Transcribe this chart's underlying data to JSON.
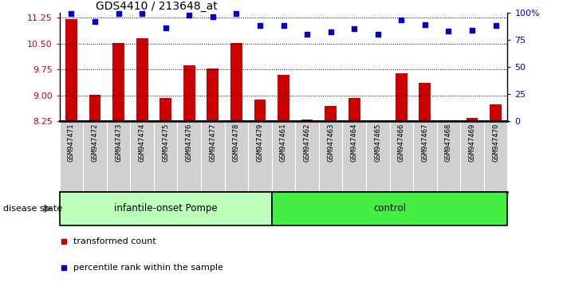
{
  "title": "GDS4410 / 213648_at",
  "samples": [
    "GSM947471",
    "GSM947472",
    "GSM947473",
    "GSM947474",
    "GSM947475",
    "GSM947476",
    "GSM947477",
    "GSM947478",
    "GSM947479",
    "GSM947461",
    "GSM947462",
    "GSM947463",
    "GSM947464",
    "GSM947465",
    "GSM947466",
    "GSM947467",
    "GSM947468",
    "GSM947469",
    "GSM947470"
  ],
  "bar_values": [
    11.22,
    9.01,
    10.53,
    10.65,
    8.93,
    9.88,
    9.78,
    10.53,
    8.87,
    9.6,
    8.3,
    8.7,
    8.93,
    8.28,
    9.65,
    9.37,
    8.27,
    8.35,
    8.75
  ],
  "dot_values": [
    99,
    92,
    99,
    99,
    86,
    98,
    96,
    99,
    88,
    88,
    80,
    82,
    85,
    80,
    93,
    89,
    83,
    84,
    88
  ],
  "ylim_left": [
    8.25,
    11.4
  ],
  "ylim_right": [
    -2.5,
    110
  ],
  "yticks_left": [
    8.25,
    9.0,
    9.75,
    10.5,
    11.25
  ],
  "yticks_right": [
    0,
    25,
    50,
    75,
    100
  ],
  "bar_color": "#cc0000",
  "dot_color": "#0000cc",
  "disease_groups": [
    {
      "label": "infantile-onset Pompe",
      "start": 0,
      "end": 9,
      "color": "#bbffbb"
    },
    {
      "label": "control",
      "start": 9,
      "end": 19,
      "color": "#44ee44"
    }
  ],
  "disease_state_label": "disease state",
  "legend_bar_label": "transformed count",
  "legend_dot_label": "percentile rank within the sample",
  "xticklabel_fontsize": 6.5,
  "tick_bg_color": "#d0d0d0"
}
